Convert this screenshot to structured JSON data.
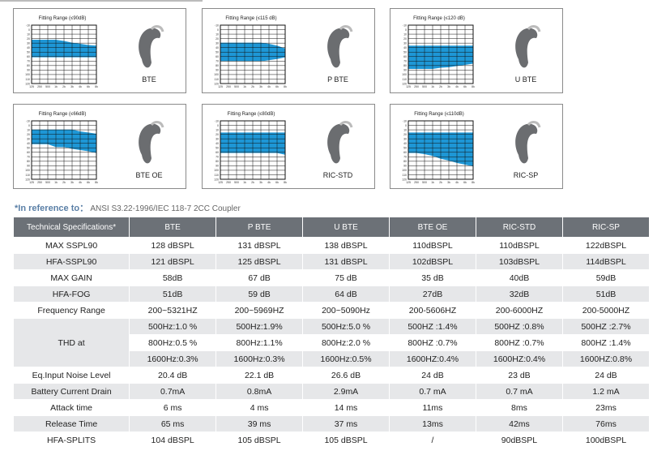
{
  "cards": [
    {
      "title": "Fitting Range (≤90dB)",
      "name": "BTE"
    },
    {
      "title": "Fitting Range (≤115 dB)",
      "name": "P BTE"
    },
    {
      "title": "Fitting Range (≤120 dB)",
      "name": "U BTE"
    },
    {
      "title": "Fitting Range (≤66dB)",
      "name": "BTE OE"
    },
    {
      "title": "Fitting Range (≤80dB)",
      "name": "RIC-STD"
    },
    {
      "title": "Fitting Range (≤110dB)",
      "name": "RIC-SP"
    }
  ],
  "axes": {
    "y": [
      "-10",
      "0",
      "10",
      "20",
      "30",
      "40",
      "50",
      "60",
      "70",
      "80",
      "90",
      "100",
      "110",
      "120"
    ],
    "x": [
      "125",
      "250",
      "500",
      "1k",
      "2k",
      "3k",
      "4k",
      "6k",
      "8k"
    ]
  },
  "reference": {
    "label": "*In reference to：",
    "text": "ANSI S3.22-1996/IEC 118-7 2CC Coupler"
  },
  "table": {
    "header": [
      "Technical Specifications*",
      "BTE",
      "P BTE",
      "U BTE",
      "BTE OE",
      "RIC-STD",
      "RIC-SP"
    ],
    "rows": [
      {
        "label": "MAX SSPL90",
        "cells": [
          "128 dBSPL",
          "131 dBSPL",
          "138 dBSPL",
          "110dBSPL",
          "110dBSPL",
          "122dBSPL"
        ]
      },
      {
        "label": "HFA-SSPL90",
        "cells": [
          "121 dBSPL",
          "125 dBSPL",
          "131 dBSPL",
          "102dBSPL",
          "103dBSPL",
          "114dBSPL"
        ]
      },
      {
        "label": "MAX GAIN",
        "cells": [
          "58dB",
          "67 dB",
          "75 dB",
          "35 dB",
          "40dB",
          "59dB"
        ]
      },
      {
        "label": "HFA-FOG",
        "cells": [
          "51dB",
          "59 dB",
          "64 dB",
          "27dB",
          "32dB",
          "51dB"
        ]
      },
      {
        "label": "Frequency Range",
        "cells": [
          "200~5321HZ",
          "200~5969HZ",
          "200~5090Hz",
          "200-5606HZ",
          "200-6000HZ",
          "200-5000HZ"
        ]
      },
      {
        "label": "THD at",
        "sub": [
          [
            "500Hz:1.0 %",
            "500Hz:1.9%",
            "500Hz:5.0 %",
            "500HZ :1.4%",
            "500HZ :0.8%",
            "500HZ :2.7%"
          ],
          [
            "800Hz:0.5 %",
            "800Hz:1.1%",
            "800Hz:2.0 %",
            "800HZ :0.7%",
            "800HZ :0.7%",
            "800HZ :1.4%"
          ],
          [
            "1600Hz:0.3%",
            "1600Hz:0.3%",
            "1600Hz:0.5%",
            "1600HZ:0.4%",
            "1600HZ:0.4%",
            "1600HZ:0.8%"
          ]
        ]
      },
      {
        "label": "Eq.Input Noise Level",
        "cells": [
          "20.4 dB",
          "22.1 dB",
          "26.6 dB",
          "24 dB",
          "23 dB",
          "24 dB"
        ]
      },
      {
        "label": "Battery Current Drain",
        "cells": [
          "0.7mA",
          "0.8mA",
          "2.9mA",
          "0.7 mA",
          "0.7 mA",
          "1.2 mA"
        ]
      },
      {
        "label": "Attack time",
        "cells": [
          "6 ms",
          "4 ms",
          "14 ms",
          "11ms",
          "8ms",
          "23ms"
        ]
      },
      {
        "label": "Release Time",
        "cells": [
          "65 ms",
          "39 ms",
          "37 ms",
          "13ms",
          "42ms",
          "76ms"
        ]
      },
      {
        "label": "HFA-SPLITS",
        "cells": [
          "104 dBSPL",
          "105 dBSPL",
          "105 dBSPL",
          "/",
          "90dBSPL",
          "100dBSPL"
        ]
      }
    ]
  }
}
